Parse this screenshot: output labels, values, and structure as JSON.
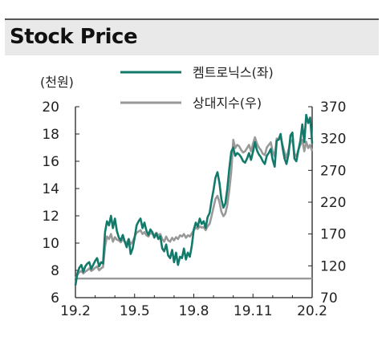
{
  "header": {
    "title": "Stock Price"
  },
  "chart_data": {
    "type": "line",
    "left_unit": "(천원)",
    "x_tick_labels": [
      "19.2",
      "19.5",
      "19.8",
      "19.11",
      "20.2"
    ],
    "y_left": {
      "ticks": [
        6,
        8,
        10,
        12,
        14,
        16,
        18,
        20
      ],
      "range": [
        6,
        20
      ]
    },
    "y_right": {
      "ticks": [
        70,
        120,
        170,
        220,
        270,
        320,
        370
      ],
      "range": [
        70,
        370
      ]
    },
    "legend_position": "top",
    "series": [
      {
        "name": "켐트로닉스(좌)",
        "axis": "left",
        "color": "#127a6b",
        "x": [
          0.0,
          0.1,
          0.2,
          0.3,
          0.4,
          0.5,
          0.6,
          0.7,
          0.8,
          0.9,
          1.0,
          1.1,
          1.2,
          1.3,
          1.4,
          1.5,
          1.6,
          1.7,
          1.8,
          1.9,
          2.0,
          2.1,
          2.2,
          2.3,
          2.4,
          2.5,
          2.6,
          2.7,
          2.8,
          2.9,
          3.0,
          3.1,
          3.2,
          3.3,
          3.4,
          3.5,
          3.6,
          3.7,
          3.8,
          3.9,
          4.0,
          4.1,
          4.2,
          4.3,
          4.4,
          4.5,
          4.6,
          4.7,
          4.8,
          4.9,
          5.0,
          5.1,
          5.2,
          5.3,
          5.4,
          5.5,
          5.6,
          5.7,
          5.8,
          5.9,
          6.0,
          6.1,
          6.2,
          6.3,
          6.4,
          6.5,
          6.6,
          6.7,
          6.8,
          6.9,
          7.0,
          7.1,
          7.2,
          7.3,
          7.4,
          7.5,
          7.6,
          7.7,
          7.8,
          7.9,
          8.0,
          8.1,
          8.2,
          8.3,
          8.4,
          8.5,
          8.6,
          8.7,
          8.8,
          8.9,
          9.0,
          9.1,
          9.2,
          9.3,
          9.4,
          9.5,
          9.6,
          9.7,
          9.8,
          9.9,
          10.0,
          10.1,
          10.2,
          10.3,
          10.4,
          10.5,
          10.6,
          10.7,
          10.8,
          10.9,
          11.0,
          11.1,
          11.2,
          11.3,
          11.4,
          11.5,
          11.6,
          11.7,
          11.8,
          11.9,
          12.0
        ],
        "values": [
          6.9,
          7.8,
          8.2,
          8.4,
          7.9,
          8.3,
          8.5,
          8.6,
          8.1,
          8.4,
          8.7,
          8.9,
          8.3,
          8.6,
          8.5,
          10.8,
          11.6,
          11.3,
          12.0,
          11.1,
          11.8,
          10.9,
          10.4,
          10.2,
          10.6,
          10.1,
          9.7,
          10.3,
          9.2,
          9.6,
          10.4,
          11.3,
          11.6,
          11.8,
          11.1,
          11.5,
          10.9,
          10.6,
          11.0,
          10.8,
          10.4,
          10.7,
          10.3,
          10.5,
          9.6,
          9.4,
          9.9,
          9.1,
          8.9,
          9.5,
          8.6,
          9.3,
          8.4,
          9.0,
          8.9,
          9.6,
          8.8,
          9.3,
          9.0,
          9.8,
          11.0,
          11.5,
          11.2,
          11.8,
          11.4,
          11.6,
          11.1,
          11.9,
          12.2,
          13.1,
          13.9,
          14.8,
          15.2,
          14.4,
          13.2,
          12.6,
          12.9,
          14.0,
          15.5,
          16.7,
          17.0,
          16.4,
          16.6,
          16.5,
          16.3,
          16.0,
          15.9,
          16.2,
          16.6,
          16.1,
          16.7,
          17.4,
          16.8,
          16.5,
          16.3,
          16.0,
          15.8,
          16.4,
          16.6,
          16.9,
          16.1,
          15.6,
          17.5,
          17.6,
          18.0,
          17.0,
          16.2,
          15.8,
          16.5,
          17.9,
          18.1,
          16.2,
          16.0,
          16.8,
          17.5,
          18.7,
          17.4,
          19.4,
          18.8,
          19.2,
          17.3
        ]
      },
      {
        "name": "상대지수(우)",
        "axis": "right",
        "color": "#999999",
        "x": [
          0.0,
          0.1,
          0.2,
          0.3,
          0.4,
          0.5,
          0.6,
          0.7,
          0.8,
          0.9,
          1.0,
          1.1,
          1.2,
          1.3,
          1.4,
          1.5,
          1.6,
          1.7,
          1.8,
          1.9,
          2.0,
          2.1,
          2.2,
          2.3,
          2.4,
          2.5,
          2.6,
          2.7,
          2.8,
          2.9,
          3.0,
          3.1,
          3.2,
          3.3,
          3.4,
          3.5,
          3.6,
          3.7,
          3.8,
          3.9,
          4.0,
          4.1,
          4.2,
          4.3,
          4.4,
          4.5,
          4.6,
          4.7,
          4.8,
          4.9,
          5.0,
          5.1,
          5.2,
          5.3,
          5.4,
          5.5,
          5.6,
          5.7,
          5.8,
          5.9,
          6.0,
          6.1,
          6.2,
          6.3,
          6.4,
          6.5,
          6.6,
          6.7,
          6.8,
          6.9,
          7.0,
          7.1,
          7.2,
          7.3,
          7.4,
          7.5,
          7.6,
          7.7,
          7.8,
          7.9,
          8.0,
          8.1,
          8.2,
          8.3,
          8.4,
          8.5,
          8.6,
          8.7,
          8.8,
          8.9,
          9.0,
          9.1,
          9.2,
          9.3,
          9.4,
          9.5,
          9.6,
          9.7,
          9.8,
          9.9,
          10.0,
          10.1,
          10.2,
          10.3,
          10.4,
          10.5,
          10.6,
          10.7,
          10.8,
          10.9,
          11.0,
          11.1,
          11.2,
          11.3,
          11.4,
          11.5,
          11.6,
          11.7,
          11.8,
          11.9,
          12.0
        ],
        "values": [
          100,
          106,
          110,
          112,
          108,
          111,
          113,
          116,
          112,
          114,
          117,
          119,
          113,
          116,
          118,
          150,
          166,
          162,
          170,
          158,
          165,
          161,
          160,
          157,
          162,
          158,
          156,
          162,
          154,
          158,
          166,
          172,
          174,
          176,
          170,
          173,
          168,
          166,
          172,
          170,
          168,
          172,
          168,
          170,
          162,
          158,
          166,
          160,
          158,
          164,
          160,
          165,
          162,
          168,
          166,
          170,
          164,
          168,
          166,
          171,
          176,
          180,
          178,
          182,
          180,
          181,
          176,
          182,
          186,
          198,
          212,
          225,
          230,
          220,
          205,
          198,
          202,
          216,
          240,
          268,
          318,
          305,
          310,
          308,
          302,
          298,
          300,
          305,
          310,
          300,
          312,
          322,
          312,
          306,
          302,
          296,
          294,
          306,
          310,
          314,
          300,
          292,
          320,
          318,
          322,
          310,
          298,
          290,
          302,
          315,
          318,
          296,
          292,
          302,
          310,
          318,
          300,
          315,
          305,
          310,
          300
        ]
      },
      {
        "name": "",
        "axis": "right",
        "color": "#999999",
        "x": [
          0.0,
          12.0
        ],
        "values": [
          100,
          100
        ]
      }
    ]
  }
}
